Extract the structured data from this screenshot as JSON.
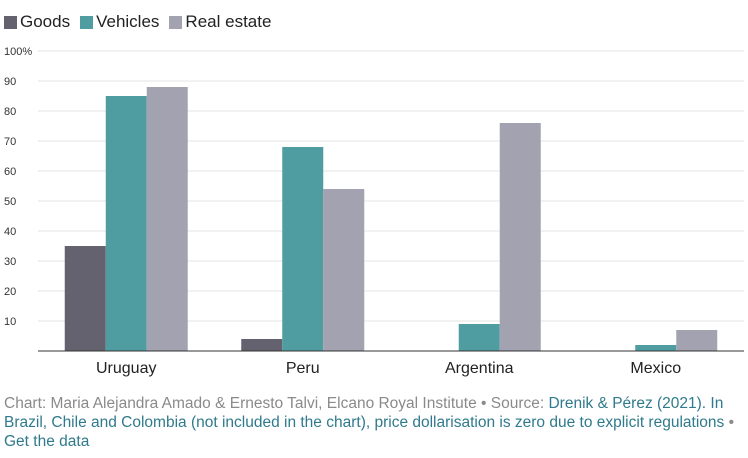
{
  "chart_data": {
    "type": "bar",
    "categories": [
      "Uruguay",
      "Peru",
      "Argentina",
      "Mexico"
    ],
    "series": [
      {
        "name": "Goods",
        "color": "#64626f",
        "values": [
          35,
          4,
          0,
          0
        ]
      },
      {
        "name": "Vehicles",
        "color": "#4f9da0",
        "values": [
          85,
          68,
          9,
          2
        ]
      },
      {
        "name": "Real estate",
        "color": "#a3a2b0",
        "values": [
          88,
          54,
          76,
          7
        ]
      }
    ],
    "ylim": [
      0,
      100
    ],
    "yticks": [
      10,
      20,
      30,
      40,
      50,
      60,
      70,
      80,
      90,
      100
    ],
    "ytick_labels": [
      "10",
      "20",
      "30",
      "40",
      "50",
      "60",
      "70",
      "80",
      "90",
      "100%"
    ],
    "grid": true,
    "legend": "top-left"
  },
  "caption": {
    "prefix": "Chart: Maria Alejandra Amado & Ernesto Talvi, Elcano Royal Institute • Source: ",
    "source_link": "Drenik & Pérez (2021). In Brazil, Chile and Colombia (not included in the chart), price dollarisation is zero due to explicit regulations",
    "separator": " • ",
    "data_link": "Get the data"
  }
}
